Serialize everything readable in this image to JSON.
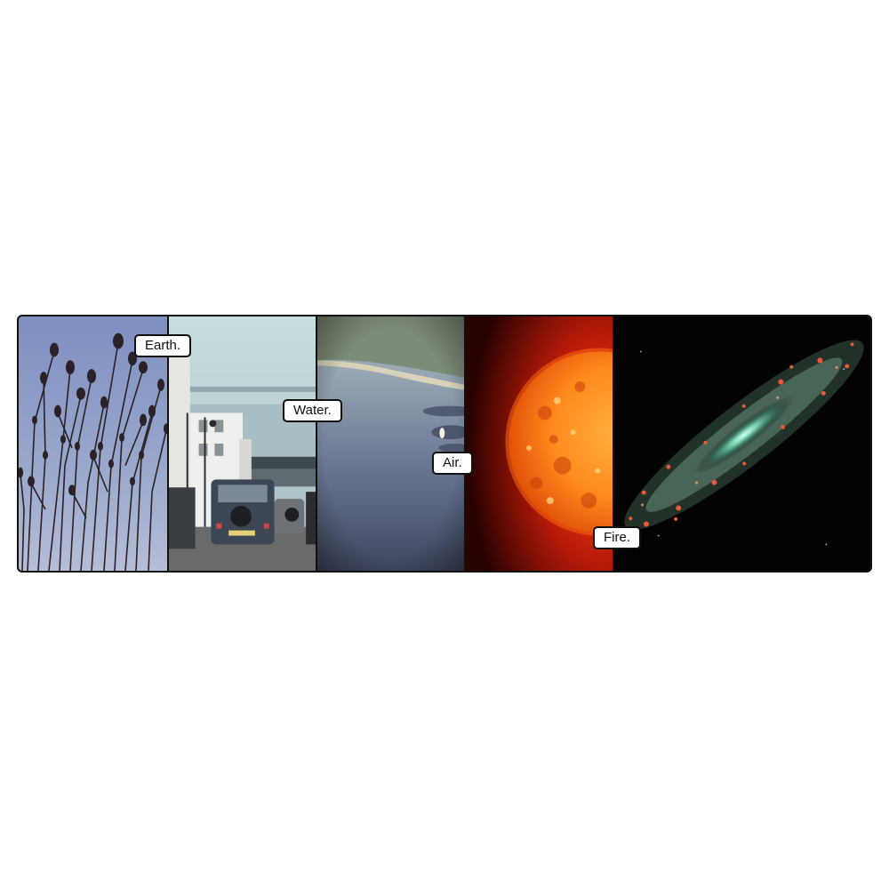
{
  "labels": {
    "earth": "Earth.",
    "water": "Water.",
    "air": "Air.",
    "fire": "Fire."
  },
  "colors": {
    "frame": "#111111",
    "caption_bg": "#ffffff",
    "earth_sky": "#8fa0c8",
    "water_sky": "#cfe0e0",
    "air_sea": "#6a7890",
    "sun_core": "#ff8a1e",
    "galaxy_dust": "#e85a3a"
  }
}
